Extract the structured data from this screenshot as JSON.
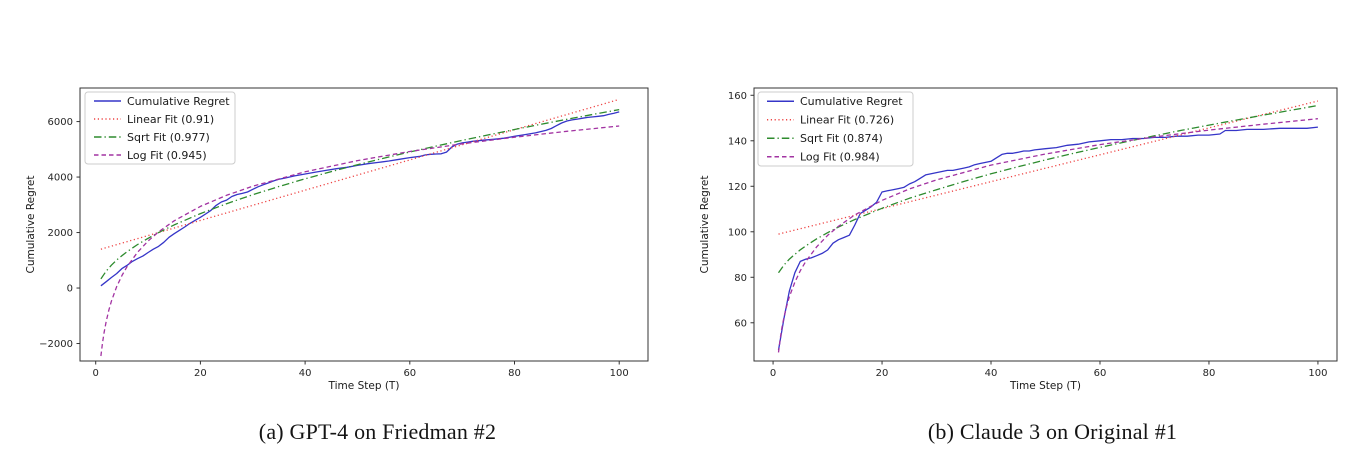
{
  "page": {
    "background": "#ffffff"
  },
  "chart_data": [
    {
      "type": "line",
      "caption": "(a) GPT-4 on Friedman #2",
      "xlabel": "Time Step (T)",
      "ylabel": "Cumulative Regret",
      "xlim": [
        -3,
        105.5
      ],
      "ylim": [
        -2630,
        7210
      ],
      "xticks": [
        0,
        20,
        40,
        60,
        80,
        100
      ],
      "yticks": [
        -2000,
        0,
        2000,
        4000,
        6000
      ],
      "grid": false,
      "legend_position": "upper-left",
      "series": [
        {
          "name": "Cumulative Regret",
          "color": "#3535c8",
          "style": "solid",
          "points": [
            [
              1,
              80
            ],
            [
              2,
              230
            ],
            [
              3,
              380
            ],
            [
              4,
              520
            ],
            [
              5,
              700
            ],
            [
              6,
              820
            ],
            [
              7,
              960
            ],
            [
              8,
              1060
            ],
            [
              9,
              1150
            ],
            [
              10,
              1280
            ],
            [
              11,
              1400
            ],
            [
              12,
              1500
            ],
            [
              13,
              1650
            ],
            [
              14,
              1830
            ],
            [
              15,
              1960
            ],
            [
              16,
              2080
            ],
            [
              17,
              2200
            ],
            [
              18,
              2330
            ],
            [
              19,
              2440
            ],
            [
              20,
              2550
            ],
            [
              21,
              2670
            ],
            [
              22,
              2800
            ],
            [
              23,
              2980
            ],
            [
              24,
              3100
            ],
            [
              25,
              3170
            ],
            [
              26,
              3300
            ],
            [
              27,
              3370
            ],
            [
              28,
              3410
            ],
            [
              29,
              3460
            ],
            [
              30,
              3560
            ],
            [
              31,
              3650
            ],
            [
              32,
              3720
            ],
            [
              33,
              3790
            ],
            [
              34,
              3860
            ],
            [
              35,
              3920
            ],
            [
              36,
              3960
            ],
            [
              38,
              4040
            ],
            [
              40,
              4110
            ],
            [
              42,
              4180
            ],
            [
              44,
              4240
            ],
            [
              46,
              4300
            ],
            [
              48,
              4350
            ],
            [
              50,
              4420
            ],
            [
              52,
              4480
            ],
            [
              54,
              4530
            ],
            [
              56,
              4580
            ],
            [
              58,
              4640
            ],
            [
              60,
              4700
            ],
            [
              62,
              4750
            ],
            [
              63,
              4800
            ],
            [
              64,
              4820
            ],
            [
              65,
              4830
            ],
            [
              66,
              4840
            ],
            [
              67,
              4900
            ],
            [
              68,
              5080
            ],
            [
              69,
              5180
            ],
            [
              70,
              5230
            ],
            [
              71,
              5260
            ],
            [
              72,
              5290
            ],
            [
              74,
              5330
            ],
            [
              76,
              5360
            ],
            [
              78,
              5400
            ],
            [
              80,
              5470
            ],
            [
              82,
              5530
            ],
            [
              84,
              5590
            ],
            [
              86,
              5680
            ],
            [
              87,
              5750
            ],
            [
              88,
              5850
            ],
            [
              89,
              5950
            ],
            [
              90,
              6020
            ],
            [
              91,
              6060
            ],
            [
              92,
              6090
            ],
            [
              93,
              6120
            ],
            [
              94,
              6150
            ],
            [
              95,
              6170
            ],
            [
              96,
              6190
            ],
            [
              97,
              6210
            ],
            [
              98,
              6260
            ],
            [
              99,
              6300
            ],
            [
              100,
              6350
            ]
          ]
        },
        {
          "name": "Linear Fit (0.91)",
          "color": "#ee4444",
          "style": "dotted",
          "points": [
            [
              1,
              1400
            ],
            [
              100,
              6800
            ]
          ]
        },
        {
          "name": "Sqrt Fit (0.977)",
          "color": "#2e8b2e",
          "style": "dashdot",
          "points": [
            [
              1,
              328
            ],
            [
              2,
              609
            ],
            [
              3,
              824
            ],
            [
              4,
              1006
            ],
            [
              5,
              1166
            ],
            [
              6,
              1311
            ],
            [
              8,
              1568
            ],
            [
              10,
              1794
            ],
            [
              12,
              1999
            ],
            [
              15,
              2276
            ],
            [
              20,
              2682
            ],
            [
              25,
              3040
            ],
            [
              30,
              3363
            ],
            [
              35,
              3661
            ],
            [
              40,
              3938
            ],
            [
              45,
              4198
            ],
            [
              50,
              4444
            ],
            [
              55,
              4678
            ],
            [
              60,
              4902
            ],
            [
              65,
              5117
            ],
            [
              70,
              5322
            ],
            [
              75,
              5521
            ],
            [
              80,
              5714
            ],
            [
              85,
              5901
            ],
            [
              90,
              6082
            ],
            [
              95,
              6258
            ],
            [
              100,
              6430
            ]
          ]
        },
        {
          "name": "Log Fit (0.945)",
          "color": "#a233a2",
          "style": "dashed",
          "points": [
            [
              1,
              -2450
            ],
            [
              1.3,
              -1978
            ],
            [
              1.6,
              -1604
            ],
            [
              2,
              -1202
            ],
            [
              2.5,
              -801
            ],
            [
              3,
              -473
            ],
            [
              4,
              45
            ],
            [
              5,
              447
            ],
            [
              6,
              775
            ],
            [
              8,
              1293
            ],
            [
              10,
              1695
            ],
            [
              12,
              2023
            ],
            [
              15,
              2424
            ],
            [
              20,
              2942
            ],
            [
              25,
              3344
            ],
            [
              30,
              3672
            ],
            [
              40,
              4190
            ],
            [
              50,
              4592
            ],
            [
              60,
              4920
            ],
            [
              70,
              5197
            ],
            [
              80,
              5438
            ],
            [
              90,
              5650
            ],
            [
              100,
              5839
            ]
          ]
        }
      ]
    },
    {
      "type": "line",
      "caption": "(b) Claude 3 on Original #1",
      "xlabel": "Time Step (T)",
      "ylabel": "Cumulative Regret",
      "xlim": [
        -3.5,
        103.5
      ],
      "ylim": [
        43.2,
        163.2
      ],
      "xticks": [
        0,
        20,
        40,
        60,
        80,
        100
      ],
      "yticks": [
        60,
        80,
        100,
        120,
        140,
        160
      ],
      "grid": false,
      "legend_position": "upper-left",
      "series": [
        {
          "name": "Cumulative Regret",
          "color": "#3535c8",
          "style": "solid",
          "points": [
            [
              1,
              48
            ],
            [
              2,
              62
            ],
            [
              3,
              74
            ],
            [
              4,
              82
            ],
            [
              5,
              87
            ],
            [
              6,
              88
            ],
            [
              7,
              88.5
            ],
            [
              8,
              89.5
            ],
            [
              9,
              90.5
            ],
            [
              10,
              92
            ],
            [
              11,
              95
            ],
            [
              12,
              96.5
            ],
            [
              13,
              97.5
            ],
            [
              14,
              98.5
            ],
            [
              15,
              103
            ],
            [
              16,
              108
            ],
            [
              17,
              109.5
            ],
            [
              18,
              111
            ],
            [
              19,
              113
            ],
            [
              20,
              117.5
            ],
            [
              21,
              118
            ],
            [
              22,
              118.5
            ],
            [
              23,
              119
            ],
            [
              24,
              119.5
            ],
            [
              25,
              121
            ],
            [
              26,
              122
            ],
            [
              27,
              123.5
            ],
            [
              28,
              125
            ],
            [
              29,
              125.5
            ],
            [
              30,
              126
            ],
            [
              31,
              126.5
            ],
            [
              32,
              127
            ],
            [
              33,
              127
            ],
            [
              34,
              127.5
            ],
            [
              35,
              128
            ],
            [
              36,
              128.5
            ],
            [
              37,
              129.5
            ],
            [
              38,
              130
            ],
            [
              39,
              130.5
            ],
            [
              40,
              131
            ],
            [
              41,
              132.5
            ],
            [
              42,
              134
            ],
            [
              43,
              134.5
            ],
            [
              44,
              134.5
            ],
            [
              45,
              135
            ],
            [
              46,
              135.5
            ],
            [
              47,
              135.5
            ],
            [
              48,
              136
            ],
            [
              50,
              136.5
            ],
            [
              52,
              137
            ],
            [
              54,
              138
            ],
            [
              56,
              138.5
            ],
            [
              58,
              139.5
            ],
            [
              60,
              140
            ],
            [
              62,
              140.5
            ],
            [
              64,
              140.5
            ],
            [
              66,
              141
            ],
            [
              68,
              141
            ],
            [
              70,
              141.5
            ],
            [
              72,
              141.5
            ],
            [
              74,
              142
            ],
            [
              76,
              142
            ],
            [
              78,
              142.5
            ],
            [
              80,
              142.5
            ],
            [
              82,
              143
            ],
            [
              83,
              144.5
            ],
            [
              85,
              144.5
            ],
            [
              87,
              145
            ],
            [
              90,
              145
            ],
            [
              93,
              145.5
            ],
            [
              96,
              145.5
            ],
            [
              98,
              145.5
            ],
            [
              100,
              146
            ]
          ]
        },
        {
          "name": "Linear Fit (0.726)",
          "color": "#ee4444",
          "style": "dotted",
          "points": [
            [
              1,
              99
            ],
            [
              100,
              157.5
            ]
          ]
        },
        {
          "name": "Sqrt Fit (0.874)",
          "color": "#2e8b2e",
          "style": "dashdot",
          "points": [
            [
              1,
              82
            ],
            [
              2,
              85.4
            ],
            [
              3,
              88
            ],
            [
              4,
              90.1
            ],
            [
              5,
              92.1
            ],
            [
              6,
              93.8
            ],
            [
              8,
              96.9
            ],
            [
              10,
              99.6
            ],
            [
              12,
              102.1
            ],
            [
              15,
              105.4
            ],
            [
              20,
              110.3
            ],
            [
              25,
              114.7
            ],
            [
              30,
              118.5
            ],
            [
              35,
              122.1
            ],
            [
              40,
              125.5
            ],
            [
              45,
              128.6
            ],
            [
              50,
              131.6
            ],
            [
              55,
              134.4
            ],
            [
              60,
              137.1
            ],
            [
              65,
              139.7
            ],
            [
              70,
              142.2
            ],
            [
              75,
              144.6
            ],
            [
              80,
              146.9
            ],
            [
              85,
              149.1
            ],
            [
              90,
              151.3
            ],
            [
              95,
              153.4
            ],
            [
              100,
              155.5
            ]
          ]
        },
        {
          "name": "Log Fit (0.984)",
          "color": "#a233a2",
          "style": "dashed",
          "points": [
            [
              1,
              47
            ],
            [
              1.3,
              52.9
            ],
            [
              1.6,
              57.5
            ],
            [
              2,
              62.5
            ],
            [
              2.5,
              67.4
            ],
            [
              3,
              71.5
            ],
            [
              4,
              77.9
            ],
            [
              5,
              82.9
            ],
            [
              6,
              87
            ],
            [
              8,
              93.4
            ],
            [
              10,
              98.4
            ],
            [
              12,
              102.4
            ],
            [
              15,
              107.4
            ],
            [
              20,
              113.8
            ],
            [
              25,
              118.8
            ],
            [
              30,
              122.8
            ],
            [
              40,
              129.3
            ],
            [
              50,
              134.2
            ],
            [
              60,
              138.3
            ],
            [
              70,
              141.7
            ],
            [
              80,
              144.7
            ],
            [
              90,
              147.3
            ],
            [
              100,
              149.7
            ]
          ]
        }
      ]
    }
  ]
}
